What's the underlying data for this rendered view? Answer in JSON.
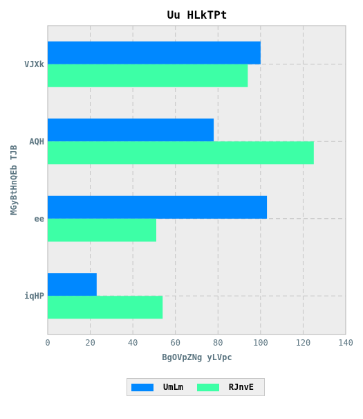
{
  "chart_data": {
    "type": "bar",
    "orientation": "horizontal",
    "title": "Uu HLkTPt",
    "xlabel": "BgOVpZNg yLVpc",
    "ylabel": "MGyBtHnQEb TJB",
    "categories": [
      "VJXk",
      "AQH",
      "ee",
      "iqHP"
    ],
    "series": [
      {
        "name": "UmLm",
        "color": "#0088ff",
        "values": [
          100,
          78,
          103,
          23
        ]
      },
      {
        "name": "RJnvE",
        "color": "#3dffa6",
        "values": [
          94,
          125,
          51,
          54
        ]
      }
    ],
    "xlim": [
      0,
      140
    ],
    "xticks": [
      0,
      20,
      40,
      60,
      80,
      100,
      120,
      140
    ],
    "grid": true,
    "legend_position": "bottom-center"
  }
}
